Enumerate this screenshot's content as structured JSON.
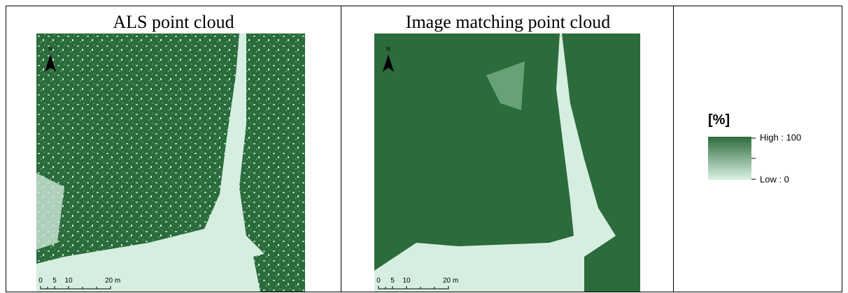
{
  "panels": [
    {
      "title": "ALS point cloud",
      "north": "N",
      "scale_labels": [
        "0",
        "5",
        "10",
        "20 m"
      ]
    },
    {
      "title": "Image matching point cloud",
      "north": "N",
      "scale_labels": [
        "0",
        "5",
        "10",
        "20 m"
      ]
    }
  ],
  "legend": {
    "title": "[%]",
    "high": "High : 100",
    "low": "Low : 0"
  }
}
